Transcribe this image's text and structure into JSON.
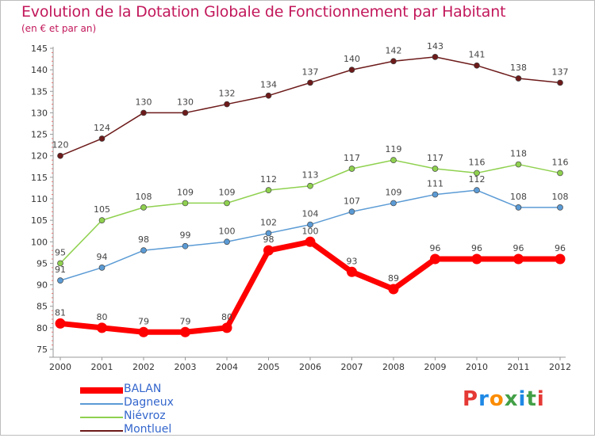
{
  "title": "Evolution de la Dotation Globale de Fonctionnement par Habitant",
  "subtitle": "(en € et par an)",
  "logo": {
    "text": "Proxiti",
    "colors": [
      "#e53935",
      "#1e88e5",
      "#fb8c00",
      "#43a047",
      "#1e88e5",
      "#43a047",
      "#e53935"
    ]
  },
  "chart_data": {
    "type": "line",
    "x": [
      "2000",
      "2001",
      "2002",
      "2003",
      "2004",
      "2005",
      "2006",
      "2007",
      "2008",
      "2009",
      "2010",
      "2011",
      "2012"
    ],
    "ylim": [
      75,
      145
    ],
    "yticks": [
      75,
      80,
      85,
      90,
      95,
      100,
      105,
      110,
      115,
      120,
      125,
      130,
      135,
      140,
      145
    ],
    "grid": false,
    "legend_position": "bottom-left",
    "series": [
      {
        "name": "Montluel",
        "color": "#6d1a1a",
        "values": [
          120,
          124,
          130,
          130,
          132,
          134,
          137,
          140,
          142,
          143,
          141,
          138,
          137
        ]
      },
      {
        "name": "Niévroz",
        "color": "#8fd14f",
        "values": [
          95,
          105,
          108,
          109,
          109,
          112,
          113,
          117,
          119,
          117,
          116,
          118,
          116
        ]
      },
      {
        "name": "Dagneux",
        "color": "#5b9bd5",
        "values": [
          91,
          94,
          98,
          99,
          100,
          102,
          104,
          107,
          109,
          111,
          112,
          108,
          108
        ]
      },
      {
        "name": "BALAN",
        "color": "#ff0000",
        "values": [
          81,
          80,
          79,
          79,
          80,
          98,
          100,
          93,
          89,
          96,
          96,
          96,
          96
        ]
      }
    ],
    "legend_order": [
      "BALAN",
      "Dagneux",
      "Niévroz",
      "Montluel"
    ]
  }
}
